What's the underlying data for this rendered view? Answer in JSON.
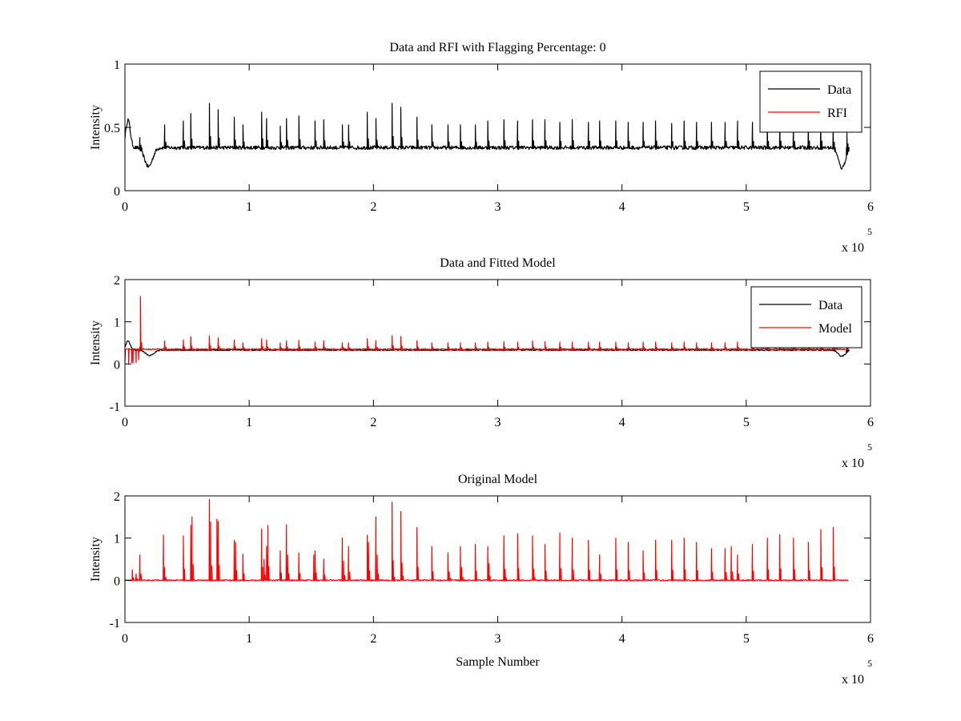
{
  "chart_data": [
    {
      "type": "line",
      "title": "Data and RFI with Flagging Percentage: 0",
      "xlabel": "",
      "ylabel": "Intensity",
      "xlim": [
        0,
        600000
      ],
      "ylim": [
        0,
        1
      ],
      "x_ticks": [
        "0",
        "1",
        "2",
        "3",
        "4",
        "5",
        "6"
      ],
      "y_ticks": [
        "0",
        "0.5",
        "1"
      ],
      "x_exponent_label": "x 10",
      "x_exponent": "5",
      "legend": {
        "position": "top-right",
        "entries": [
          "Data",
          "RFI"
        ]
      },
      "series": [
        {
          "name": "Data",
          "color": "#000000",
          "baseline": 0.34,
          "x_end": 583000,
          "dips": [
            [
              19000,
              0.19,
              4500
            ],
            [
              577000,
              0.18,
              4000
            ]
          ],
          "bumps": [
            [
              2500,
              0.56,
              2500
            ]
          ],
          "peaks": [
            [
              12000,
              0.42
            ],
            [
              32000,
              0.52
            ],
            [
              47000,
              0.55
            ],
            [
              53000,
              0.61
            ],
            [
              68000,
              0.69
            ],
            [
              75000,
              0.64
            ],
            [
              88000,
              0.58
            ],
            [
              95000,
              0.52
            ],
            [
              110000,
              0.62
            ],
            [
              114000,
              0.57
            ],
            [
              125000,
              0.51
            ],
            [
              130000,
              0.57
            ],
            [
              140000,
              0.59
            ],
            [
              153000,
              0.55
            ],
            [
              160000,
              0.56
            ],
            [
              175000,
              0.52
            ],
            [
              180000,
              0.52
            ],
            [
              195000,
              0.62
            ],
            [
              202000,
              0.57
            ],
            [
              215000,
              0.69
            ],
            [
              222000,
              0.66
            ],
            [
              235000,
              0.58
            ],
            [
              247000,
              0.52
            ],
            [
              260000,
              0.52
            ],
            [
              270000,
              0.52
            ],
            [
              282000,
              0.52
            ],
            [
              292000,
              0.55
            ],
            [
              305000,
              0.56
            ],
            [
              316000,
              0.55
            ],
            [
              328000,
              0.56
            ],
            [
              338000,
              0.56
            ],
            [
              350000,
              0.54
            ],
            [
              360000,
              0.56
            ],
            [
              373000,
              0.54
            ],
            [
              382000,
              0.55
            ],
            [
              395000,
              0.55
            ],
            [
              405000,
              0.54
            ],
            [
              417000,
              0.54
            ],
            [
              427000,
              0.55
            ],
            [
              440000,
              0.53
            ],
            [
              450000,
              0.55
            ],
            [
              460000,
              0.54
            ],
            [
              472000,
              0.54
            ],
            [
              483000,
              0.54
            ],
            [
              493000,
              0.55
            ],
            [
              505000,
              0.54
            ],
            [
              517000,
              0.54
            ],
            [
              527000,
              0.55
            ],
            [
              538000,
              0.54
            ],
            [
              550000,
              0.55
            ],
            [
              560000,
              0.55
            ],
            [
              570000,
              0.51
            ],
            [
              581000,
              0.46
            ]
          ]
        },
        {
          "name": "RFI",
          "color": "#ff0000",
          "visible_data": false
        }
      ]
    },
    {
      "type": "line",
      "title": "Data and Fitted Model",
      "xlabel": "",
      "ylabel": "Intensity",
      "xlim": [
        0,
        600000
      ],
      "ylim": [
        -1,
        2
      ],
      "x_ticks": [
        "0",
        "1",
        "2",
        "3",
        "4",
        "5",
        "6"
      ],
      "y_ticks": [
        "-1",
        "0",
        "1",
        "2"
      ],
      "x_exponent_label": "x 10",
      "x_exponent": "5",
      "legend": {
        "position": "top-right",
        "entries": [
          "Data",
          "Model"
        ]
      },
      "series": [
        {
          "name": "Data",
          "color": "#000000",
          "baseline": 0.33,
          "x_end": 583000,
          "dips": [
            [
              20000,
              0.2,
              4500
            ],
            [
              577000,
              0.18,
              4000
            ]
          ],
          "bumps": [
            [
              2500,
              0.55,
              2500
            ]
          ],
          "peaks": [
            [
              12000,
              0.4
            ],
            [
              32000,
              0.45
            ],
            [
              47000,
              0.45
            ],
            [
              68000,
              0.5
            ],
            [
              88000,
              0.45
            ],
            [
              110000,
              0.48
            ],
            [
              130000,
              0.45
            ],
            [
              153000,
              0.43
            ],
            [
              175000,
              0.42
            ],
            [
              195000,
              0.45
            ],
            [
              215000,
              0.48
            ],
            [
              260000,
              0.42
            ],
            [
              305000,
              0.42
            ],
            [
              350000,
              0.42
            ],
            [
              395000,
              0.42
            ],
            [
              440000,
              0.42
            ],
            [
              483000,
              0.42
            ],
            [
              527000,
              0.42
            ],
            [
              570000,
              0.42
            ],
            [
              581000,
              0.46
            ]
          ]
        },
        {
          "name": "Model",
          "color": "#ff0000",
          "baseline": 0.35,
          "x_start": 0,
          "x_end": 582000,
          "early": [
            [
              0,
              0.0
            ],
            [
              3000,
              0.0
            ],
            [
              5500,
              0.03
            ],
            [
              6000,
              0.3
            ],
            [
              6500,
              0.02
            ],
            [
              9000,
              0.03
            ],
            [
              10000,
              0.35
            ],
            [
              11000,
              0.1
            ],
            [
              12500,
              1.6
            ],
            [
              13500,
              0.5
            ],
            [
              15000,
              0.37
            ]
          ],
          "peaks": [
            [
              32000,
              0.55
            ],
            [
              47000,
              0.57
            ],
            [
              53000,
              0.65
            ],
            [
              68000,
              0.67
            ],
            [
              75000,
              0.62
            ],
            [
              88000,
              0.57
            ],
            [
              95000,
              0.5
            ],
            [
              110000,
              0.6
            ],
            [
              114000,
              0.57
            ],
            [
              125000,
              0.5
            ],
            [
              130000,
              0.55
            ],
            [
              140000,
              0.56
            ],
            [
              153000,
              0.52
            ],
            [
              160000,
              0.55
            ],
            [
              175000,
              0.5
            ],
            [
              180000,
              0.5
            ],
            [
              195000,
              0.6
            ],
            [
              202000,
              0.55
            ],
            [
              215000,
              0.67
            ],
            [
              222000,
              0.65
            ],
            [
              235000,
              0.55
            ],
            [
              247000,
              0.5
            ],
            [
              260000,
              0.5
            ],
            [
              270000,
              0.5
            ],
            [
              282000,
              0.5
            ],
            [
              292000,
              0.52
            ],
            [
              305000,
              0.53
            ],
            [
              316000,
              0.52
            ],
            [
              328000,
              0.55
            ],
            [
              338000,
              0.53
            ],
            [
              350000,
              0.52
            ],
            [
              360000,
              0.52
            ],
            [
              373000,
              0.52
            ],
            [
              382000,
              0.52
            ],
            [
              395000,
              0.52
            ],
            [
              405000,
              0.5
            ],
            [
              417000,
              0.52
            ],
            [
              427000,
              0.52
            ],
            [
              440000,
              0.5
            ],
            [
              450000,
              0.52
            ],
            [
              460000,
              0.5
            ],
            [
              472000,
              0.5
            ],
            [
              483000,
              0.5
            ],
            [
              493000,
              0.52
            ],
            [
              505000,
              0.5
            ],
            [
              517000,
              0.5
            ],
            [
              527000,
              0.55
            ],
            [
              538000,
              0.5
            ],
            [
              550000,
              0.52
            ],
            [
              560000,
              0.52
            ],
            [
              570000,
              0.5
            ]
          ]
        }
      ]
    },
    {
      "type": "line",
      "title": "Original Model",
      "xlabel": "Sample Number",
      "ylabel": "Intensity",
      "xlim": [
        0,
        600000
      ],
      "ylim": [
        -1,
        2
      ],
      "x_ticks": [
        "0",
        "1",
        "2",
        "3",
        "4",
        "5",
        "6"
      ],
      "y_ticks": [
        "-1",
        "0",
        "1",
        "2"
      ],
      "x_exponent_label": "x 10",
      "x_exponent": "5",
      "series": [
        {
          "name": "",
          "color": "#ff0000",
          "baseline": 0.0,
          "x_end": 582000,
          "peaks": [
            [
              6000,
              0.25
            ],
            [
              9000,
              0.15
            ],
            [
              12000,
              0.6
            ],
            [
              31000,
              1.07
            ],
            [
              32000,
              0.3
            ],
            [
              47000,
              1.05
            ],
            [
              53000,
              1.3
            ],
            [
              54000,
              1.5
            ],
            [
              68000,
              1.92
            ],
            [
              69000,
              1.38
            ],
            [
              74000,
              1.45
            ],
            [
              75000,
              1.4
            ],
            [
              88000,
              0.95
            ],
            [
              89000,
              0.9
            ],
            [
              95000,
              0.62
            ],
            [
              110000,
              1.22
            ],
            [
              112000,
              0.5
            ],
            [
              114000,
              0.8
            ],
            [
              115000,
              1.3
            ],
            [
              125000,
              0.7
            ],
            [
              130000,
              1.32
            ],
            [
              131000,
              0.6
            ],
            [
              140000,
              0.65
            ],
            [
              152000,
              0.6
            ],
            [
              153000,
              0.7
            ],
            [
              160000,
              0.5
            ],
            [
              175000,
              1.0
            ],
            [
              176000,
              0.45
            ],
            [
              180000,
              0.8
            ],
            [
              195000,
              1.07
            ],
            [
              196000,
              0.9
            ],
            [
              202000,
              1.5
            ],
            [
              203000,
              0.6
            ],
            [
              215000,
              1.85
            ],
            [
              216000,
              0.3
            ],
            [
              222000,
              1.63
            ],
            [
              223000,
              0.4
            ],
            [
              235000,
              1.25
            ],
            [
              247000,
              0.8
            ],
            [
              260000,
              0.65
            ],
            [
              261000,
              0.2
            ],
            [
              270000,
              0.8
            ],
            [
              271000,
              0.3
            ],
            [
              282000,
              0.85
            ],
            [
              292000,
              0.8
            ],
            [
              293000,
              0.4
            ],
            [
              305000,
              1.05
            ],
            [
              306000,
              0.2
            ],
            [
              316000,
              1.1
            ],
            [
              328000,
              1.05
            ],
            [
              329000,
              0.25
            ],
            [
              338000,
              0.85
            ],
            [
              350000,
              1.12
            ],
            [
              360000,
              1.0
            ],
            [
              373000,
              0.95
            ],
            [
              382000,
              0.6
            ],
            [
              395000,
              1.0
            ],
            [
              405000,
              0.9
            ],
            [
              417000,
              0.7
            ],
            [
              427000,
              0.95
            ],
            [
              440000,
              0.95
            ],
            [
              450000,
              1.0
            ],
            [
              460000,
              0.9
            ],
            [
              472000,
              0.75
            ],
            [
              483000,
              0.75
            ],
            [
              488000,
              0.8
            ],
            [
              493000,
              0.6
            ],
            [
              505000,
              0.85
            ],
            [
              517000,
              1.0
            ],
            [
              527000,
              1.08
            ],
            [
              538000,
              1.0
            ],
            [
              550000,
              0.9
            ],
            [
              560000,
              1.2
            ],
            [
              570000,
              1.25
            ]
          ]
        }
      ]
    }
  ]
}
